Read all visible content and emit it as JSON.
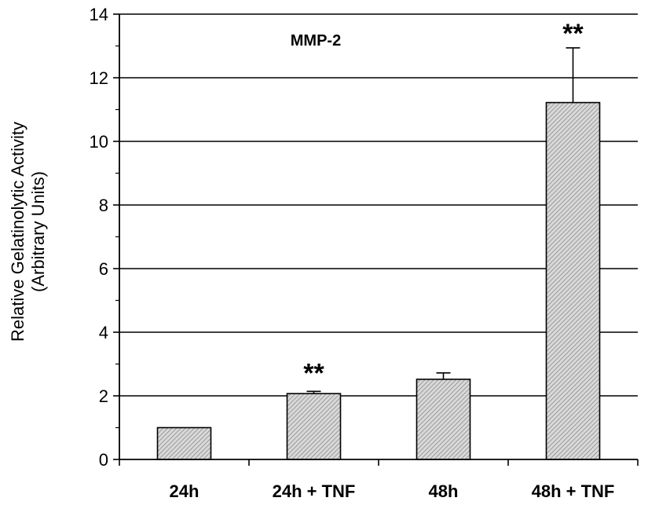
{
  "chart_data": {
    "type": "bar",
    "title": "MMP-2",
    "ylabel_line1": "Relative Gelatinolytic Activity",
    "ylabel_line2": "(Arbitrary Units)",
    "xlabel": "",
    "categories": [
      "24h",
      "24h + TNF",
      "48h",
      "48h + TNF"
    ],
    "values": [
      1.0,
      2.07,
      2.52,
      11.22
    ],
    "errors": [
      0,
      0.07,
      0.2,
      1.72
    ],
    "significance": [
      "",
      "**",
      "",
      "**"
    ],
    "ylim": [
      0,
      14
    ],
    "yticks": [
      0,
      2,
      4,
      6,
      8,
      10,
      12,
      14
    ],
    "grid": true,
    "bar_fill": "#c8c8c8",
    "bar_stroke": "#000000"
  }
}
